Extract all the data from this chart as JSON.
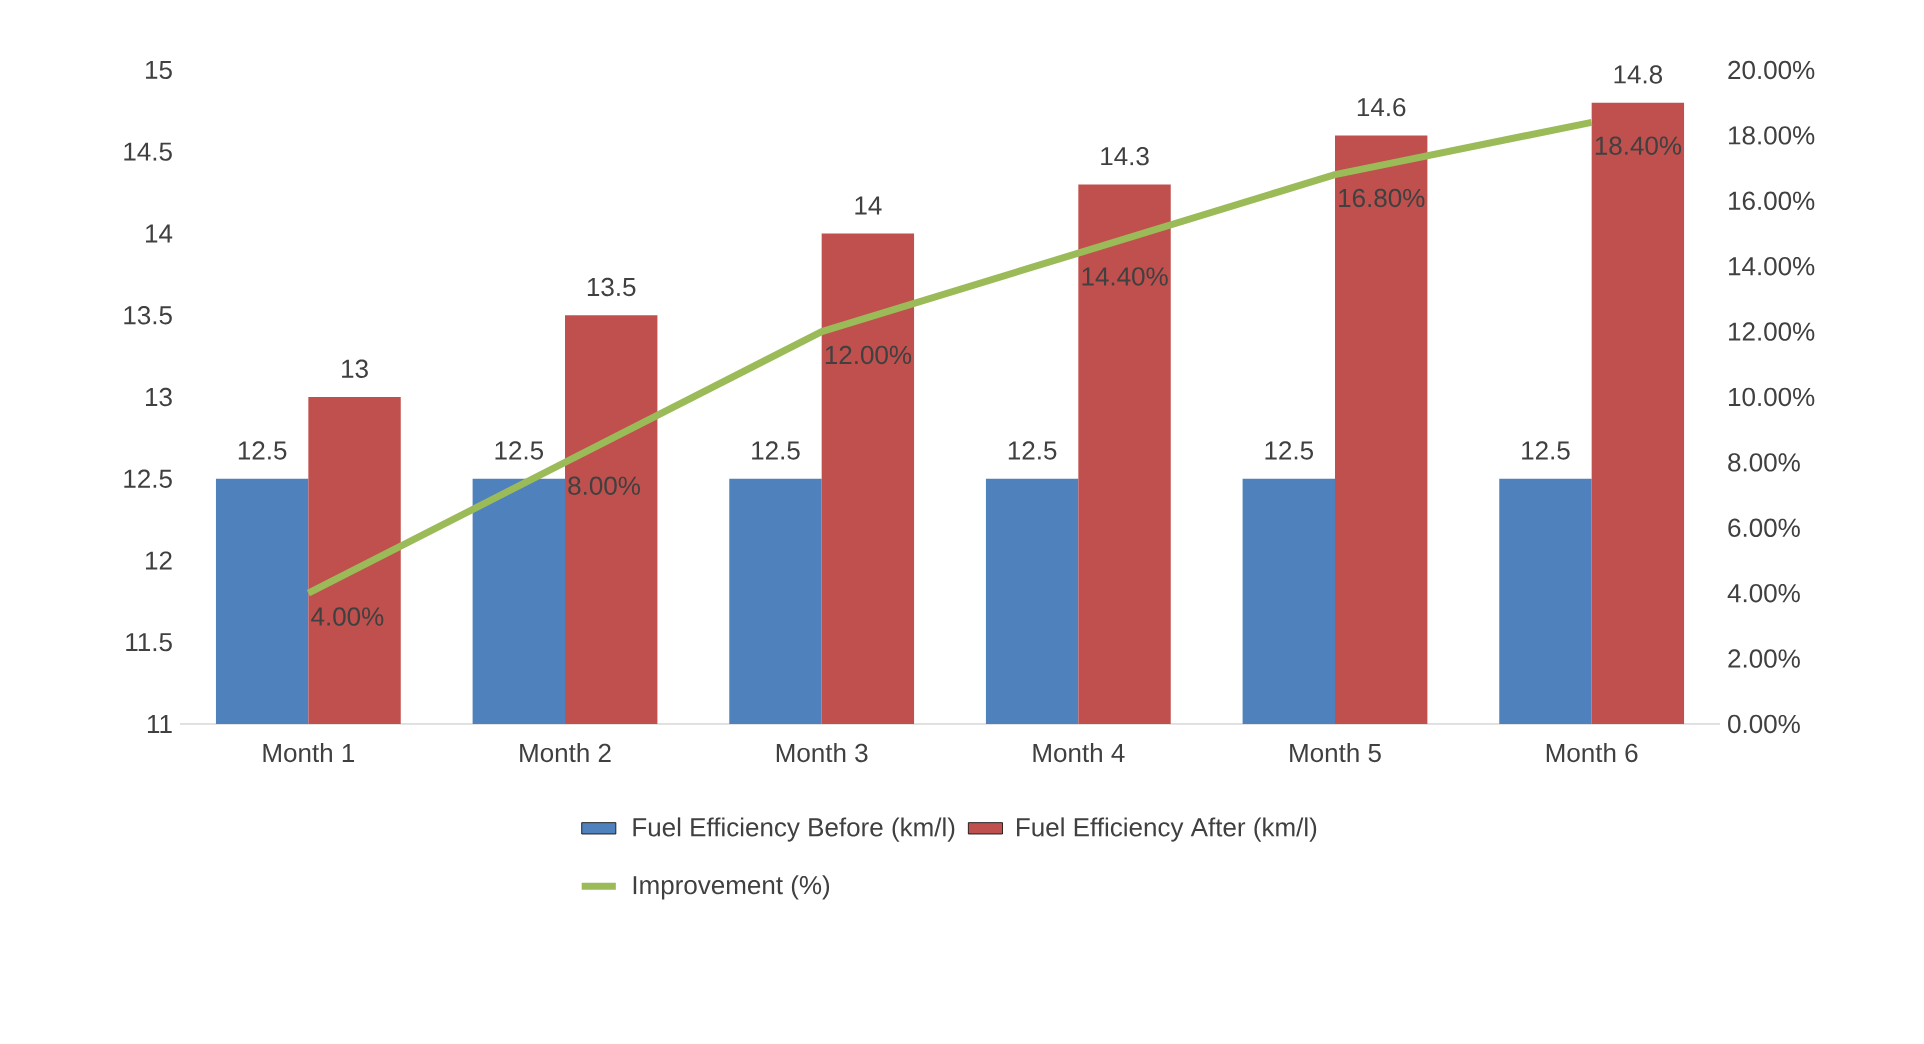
{
  "chart_data": {
    "type": "bar",
    "categories": [
      "Month 1",
      "Month 2",
      "Month 3",
      "Month 4",
      "Month 5",
      "Month 6"
    ],
    "series": [
      {
        "name": "Fuel Efficiency Before (km/l)",
        "color": "#4f81bd",
        "values": [
          12.5,
          12.5,
          12.5,
          12.5,
          12.5,
          12.5
        ]
      },
      {
        "name": "Fuel Efficiency After (km/l)",
        "color": "#c0504d",
        "values": [
          13,
          13.5,
          14,
          14.3,
          14.6,
          14.8
        ]
      },
      {
        "name": "Improvement (%)",
        "color": "#9bbb59",
        "type": "line",
        "axis": "y2",
        "values": [
          4,
          8,
          12,
          14.4,
          16.8,
          18.4
        ],
        "value_labels": [
          "4.00%",
          "8.00%",
          "12.00%",
          "14.40%",
          "16.80%",
          "18.40%"
        ]
      }
    ],
    "ylim": [
      11,
      15
    ],
    "yticks": [
      11,
      11.5,
      12,
      12.5,
      13,
      13.5,
      14,
      14.5,
      15
    ],
    "y2lim": [
      0,
      20
    ],
    "y2ticks": [
      {
        "value": 0,
        "label": "0.00%"
      },
      {
        "value": 2,
        "label": "2.00%"
      },
      {
        "value": 4,
        "label": "4.00%"
      },
      {
        "value": 6,
        "label": "6.00%"
      },
      {
        "value": 8,
        "label": "8.00%"
      },
      {
        "value": 10,
        "label": "10.00%"
      },
      {
        "value": 12,
        "label": "12.00%"
      },
      {
        "value": 14,
        "label": "14.00%"
      },
      {
        "value": 16,
        "label": "16.00%"
      },
      {
        "value": 18,
        "label": "18.00%"
      },
      {
        "value": 20,
        "label": "20.00%"
      }
    ],
    "data_labels": true,
    "legend": "bottom"
  }
}
